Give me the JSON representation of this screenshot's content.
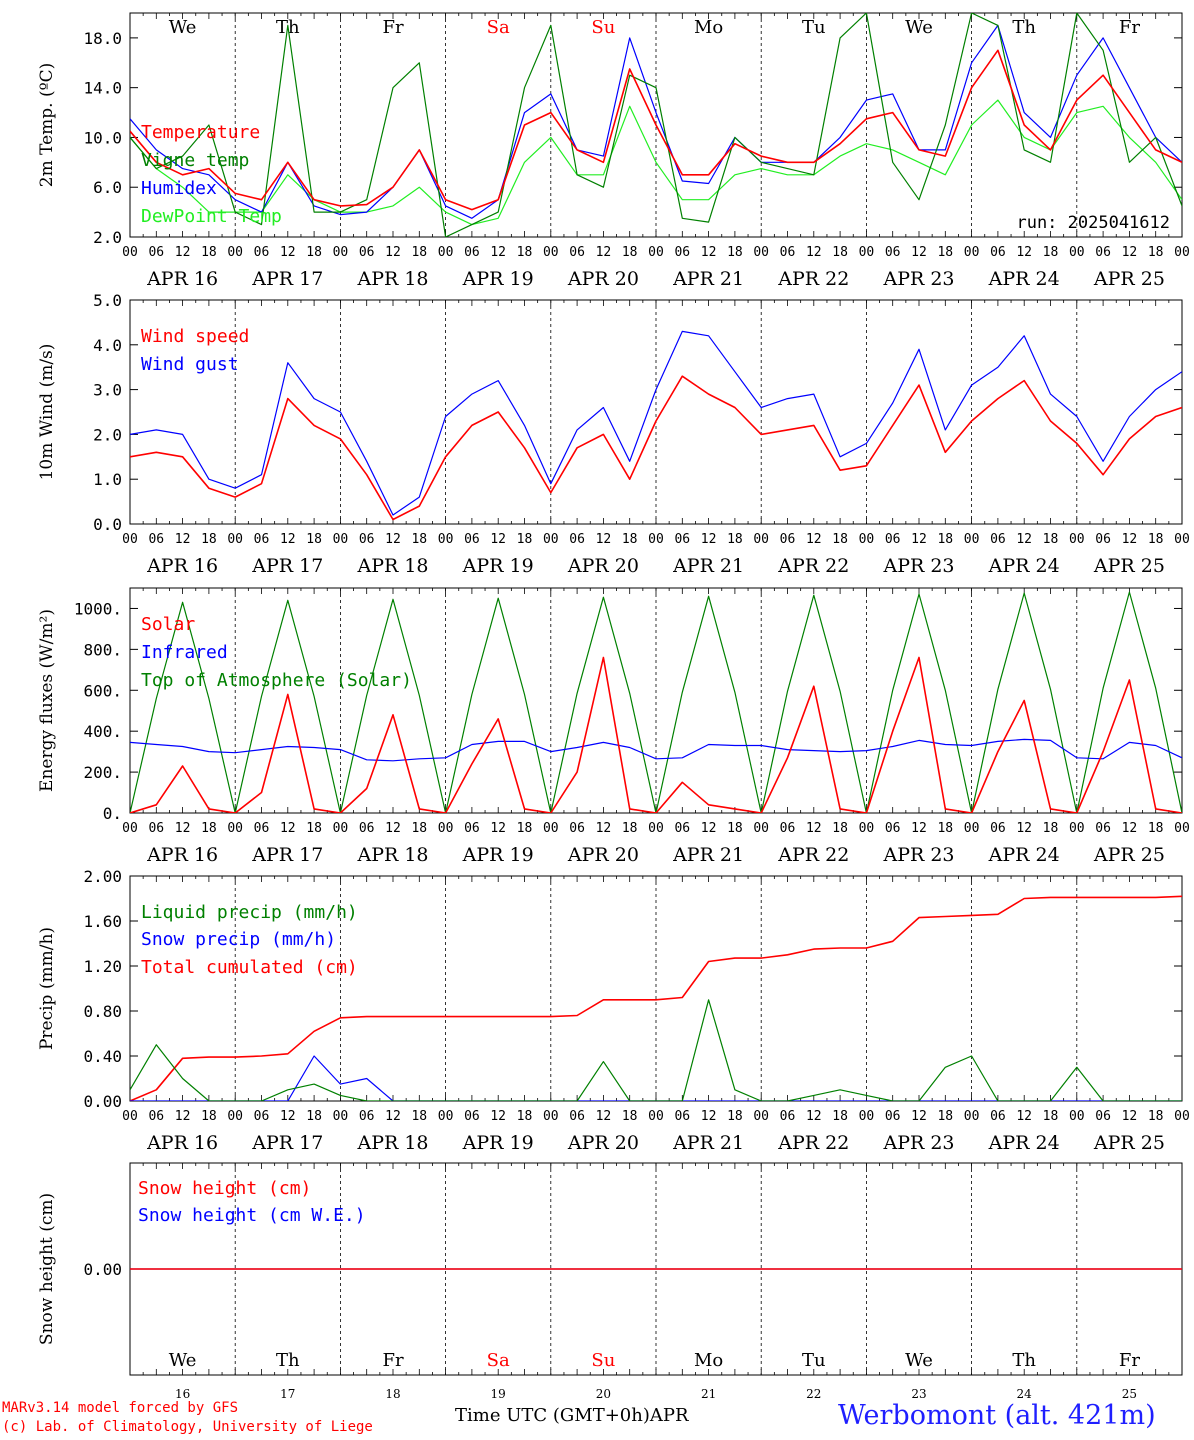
{
  "footer": {
    "model_line": "MARv3.14 model forced by GFS",
    "credit_line": "(c) Lab. of Climatology, University of Liege",
    "xlabel": "Time UTC (GMT+0h)",
    "month": "APR",
    "station": "Werbomont (alt. 421m)"
  },
  "colors": {
    "red": "#ff0000",
    "green": "#008000",
    "blue": "#0000ff",
    "lightgreen": "#22ee22",
    "station": "#1f1fff",
    "credit": "#ff0000"
  },
  "days": {
    "labels": [
      "APR 16",
      "APR 17",
      "APR 18",
      "APR 19",
      "APR 20",
      "APR 21",
      "APR 22",
      "APR 23",
      "APR 24",
      "APR 25"
    ],
    "weekdays": [
      "We",
      "Th",
      "Fr",
      "Sa",
      "Su",
      "Mo",
      "Tu",
      "We",
      "Th",
      "Fr"
    ],
    "weekday_colors": [
      "black",
      "black",
      "black",
      "red",
      "red",
      "black",
      "black",
      "black",
      "black",
      "black"
    ],
    "numbers": [
      "16",
      "17",
      "18",
      "19",
      "20",
      "21",
      "22",
      "23",
      "24",
      "25"
    ],
    "hour_ticks": [
      "00",
      "06",
      "12",
      "18"
    ],
    "final_tick": "00"
  },
  "chart_data": [
    {
      "id": "temp",
      "type": "line",
      "ylabel": "2m Temp. (ºC)",
      "ylim": [
        2,
        20
      ],
      "yticks": [
        2,
        6,
        10,
        14,
        18
      ],
      "ytick_labels": [
        "2.0",
        "6.0",
        "10.0",
        "14.0",
        "18.0"
      ],
      "run_label": "run: 2025041612",
      "x_hours": [
        0,
        6,
        12,
        18,
        24,
        30,
        36,
        42,
        48,
        54,
        60,
        66,
        72,
        78,
        84,
        90,
        96,
        102,
        108,
        114,
        120,
        126,
        132,
        138,
        144,
        150,
        156,
        162,
        168,
        174,
        180,
        186,
        192,
        198,
        204,
        210,
        216,
        222,
        228,
        234,
        240
      ],
      "series": [
        {
          "name": "Temperature",
          "color": "red",
          "values": [
            10.5,
            8,
            7,
            7.5,
            5.5,
            5,
            8,
            5,
            4.5,
            4.6,
            6,
            9,
            5,
            4.2,
            5,
            11,
            12,
            9,
            8,
            15.5,
            11,
            7,
            7,
            9.5,
            8.5,
            8,
            8,
            9.5,
            11.5,
            12,
            9,
            8.5,
            14,
            17,
            11,
            9,
            13,
            15,
            12,
            9,
            8
          ]
        },
        {
          "name": "Vigne temp",
          "color": "green",
          "values": [
            10,
            7.5,
            8.5,
            11,
            4,
            3,
            19,
            4,
            4,
            5,
            14,
            16,
            2,
            3,
            4,
            14,
            19,
            7,
            6,
            15,
            14,
            3.5,
            3.2,
            10,
            8,
            7.5,
            7,
            18,
            20,
            8,
            5,
            11,
            20,
            19,
            9,
            8,
            20,
            17,
            8,
            10,
            4.5
          ]
        },
        {
          "name": "Humidex",
          "color": "blue",
          "values": [
            11.5,
            9,
            7.5,
            7,
            5,
            4,
            8,
            4.5,
            3.8,
            4,
            6,
            9,
            4.5,
            3.5,
            5,
            12,
            13.5,
            9,
            8.5,
            18,
            12,
            6.5,
            6.3,
            10,
            8,
            8,
            8,
            10,
            13,
            13.5,
            9,
            9,
            16,
            19,
            12,
            10,
            15,
            18,
            14,
            10,
            8
          ]
        },
        {
          "name": "DewPoint Temp",
          "color": "lightgreen",
          "values": [
            10,
            7.5,
            6,
            4,
            4,
            4,
            7,
            5,
            4,
            4,
            4.5,
            6,
            4,
            3,
            3.5,
            8,
            10,
            7,
            7,
            12.5,
            8,
            5,
            5,
            7,
            7.5,
            7,
            7,
            8.5,
            9.5,
            9,
            8,
            7,
            11,
            13,
            10,
            9,
            12,
            12.5,
            10,
            8,
            5
          ]
        }
      ]
    },
    {
      "id": "wind",
      "type": "line",
      "ylabel": "10m Wind (m/s)",
      "ylim": [
        0,
        5
      ],
      "yticks": [
        0,
        1,
        2,
        3,
        4,
        5
      ],
      "ytick_labels": [
        "0.0",
        "1.0",
        "2.0",
        "3.0",
        "4.0",
        "5.0"
      ],
      "x_hours": [
        0,
        6,
        12,
        18,
        24,
        30,
        36,
        42,
        48,
        54,
        60,
        66,
        72,
        78,
        84,
        90,
        96,
        102,
        108,
        114,
        120,
        126,
        132,
        138,
        144,
        150,
        156,
        162,
        168,
        174,
        180,
        186,
        192,
        198,
        204,
        210,
        216,
        222,
        228,
        234,
        240
      ],
      "series": [
        {
          "name": "Wind speed",
          "color": "red",
          "values": [
            1.5,
            1.6,
            1.5,
            0.8,
            0.6,
            0.9,
            2.8,
            2.2,
            1.9,
            1.1,
            0.1,
            0.4,
            1.5,
            2.2,
            2.5,
            1.7,
            0.7,
            1.7,
            2.0,
            1.0,
            2.3,
            3.3,
            2.9,
            2.6,
            2.0,
            2.1,
            2.2,
            1.2,
            1.3,
            2.2,
            3.1,
            1.6,
            2.3,
            2.8,
            3.2,
            2.3,
            1.8,
            1.1,
            1.9,
            2.4,
            2.6
          ]
        },
        {
          "name": "Wind gust",
          "color": "blue",
          "values": [
            2.0,
            2.1,
            2.0,
            1.0,
            0.8,
            1.1,
            3.6,
            2.8,
            2.5,
            1.4,
            0.2,
            0.6,
            2.4,
            2.9,
            3.2,
            2.2,
            0.9,
            2.1,
            2.6,
            1.4,
            3.0,
            4.3,
            4.2,
            3.4,
            2.6,
            2.8,
            2.9,
            1.5,
            1.8,
            2.7,
            3.9,
            2.1,
            3.1,
            3.5,
            4.2,
            2.9,
            2.4,
            1.4,
            2.4,
            3.0,
            3.4
          ]
        }
      ]
    },
    {
      "id": "energy",
      "type": "line",
      "ylabel": "Energy fluxes (W/m²)",
      "ylim": [
        0,
        1100
      ],
      "yticks": [
        0,
        200,
        400,
        600,
        800,
        1000
      ],
      "ytick_labels": [
        "0.",
        "200.",
        "400.",
        "600.",
        "800.",
        "1000."
      ],
      "x_hours": [
        0,
        6,
        12,
        18,
        24,
        30,
        36,
        42,
        48,
        54,
        60,
        66,
        72,
        78,
        84,
        90,
        96,
        102,
        108,
        114,
        120,
        126,
        132,
        138,
        144,
        150,
        156,
        162,
        168,
        174,
        180,
        186,
        192,
        198,
        204,
        210,
        216,
        222,
        228,
        234,
        240
      ],
      "series": [
        {
          "name": "Solar",
          "color": "red",
          "values": [
            0,
            40,
            230,
            20,
            0,
            100,
            580,
            20,
            0,
            120,
            480,
            20,
            0,
            240,
            460,
            20,
            0,
            200,
            760,
            20,
            0,
            150,
            40,
            20,
            0,
            270,
            620,
            20,
            0,
            400,
            760,
            20,
            0,
            300,
            550,
            20,
            0,
            300,
            650,
            20,
            0
          ]
        },
        {
          "name": "Infrared",
          "color": "blue",
          "values": [
            345,
            335,
            325,
            300,
            295,
            310,
            325,
            320,
            310,
            260,
            255,
            265,
            270,
            335,
            350,
            350,
            300,
            320,
            345,
            320,
            265,
            270,
            335,
            330,
            330,
            310,
            305,
            300,
            305,
            325,
            355,
            335,
            330,
            350,
            360,
            355,
            270,
            265,
            345,
            330,
            270
          ]
        },
        {
          "name": "Top of Atmosphere (Solar)",
          "color": "green",
          "values": [
            0,
            560,
            1030,
            560,
            0,
            570,
            1040,
            570,
            0,
            575,
            1045,
            575,
            0,
            580,
            1050,
            580,
            0,
            585,
            1055,
            585,
            0,
            590,
            1060,
            590,
            0,
            595,
            1065,
            595,
            0,
            600,
            1070,
            600,
            0,
            605,
            1075,
            605,
            0,
            610,
            1080,
            610,
            0
          ]
        }
      ]
    },
    {
      "id": "precip",
      "type": "line",
      "ylabel": "Precip (mm/h)",
      "ylim": [
        0,
        2
      ],
      "yticks": [
        0,
        0.4,
        0.8,
        1.2,
        1.6,
        2.0
      ],
      "ytick_labels": [
        "0.00",
        "0.40",
        "0.80",
        "1.20",
        "1.60",
        "2.00"
      ],
      "x_hours": [
        0,
        6,
        12,
        18,
        24,
        30,
        36,
        42,
        48,
        54,
        60,
        66,
        72,
        78,
        84,
        90,
        96,
        102,
        108,
        114,
        120,
        126,
        132,
        138,
        144,
        150,
        156,
        162,
        168,
        174,
        180,
        186,
        192,
        198,
        204,
        210,
        216,
        222,
        228,
        234,
        240
      ],
      "series": [
        {
          "name": "Liquid precip (mm/h)",
          "color": "green",
          "values": [
            0.1,
            0.5,
            0.2,
            0,
            0,
            0,
            0.1,
            0.15,
            0.05,
            0,
            0,
            0,
            0,
            0,
            0,
            0,
            0,
            0,
            0.35,
            0,
            0,
            0,
            0.9,
            0.1,
            0,
            0,
            0.05,
            0.1,
            0.05,
            0,
            0,
            0.3,
            0.4,
            0,
            0,
            0,
            0.3,
            0,
            0,
            0,
            0
          ]
        },
        {
          "name": "Snow precip (mm/h)",
          "color": "blue",
          "values": [
            0,
            0,
            0,
            0,
            0,
            0,
            0,
            0.4,
            0.15,
            0.2,
            0,
            0,
            0,
            0,
            0,
            0,
            0,
            0,
            0,
            0,
            0,
            0,
            0,
            0,
            0,
            0,
            0,
            0,
            0,
            0,
            0,
            0,
            0,
            0,
            0,
            0,
            0,
            0,
            0,
            0,
            0
          ]
        },
        {
          "name": "Total cumulated (cm)",
          "color": "red",
          "values": [
            0,
            0.1,
            0.38,
            0.39,
            0.39,
            0.4,
            0.42,
            0.62,
            0.74,
            0.75,
            0.75,
            0.75,
            0.75,
            0.75,
            0.75,
            0.75,
            0.75,
            0.76,
            0.9,
            0.9,
            0.9,
            0.92,
            1.24,
            1.27,
            1.27,
            1.3,
            1.35,
            1.36,
            1.36,
            1.42,
            1.63,
            1.64,
            1.65,
            1.66,
            1.8,
            1.81,
            1.81,
            1.81,
            1.81,
            1.81,
            1.82
          ]
        }
      ]
    },
    {
      "id": "snow",
      "type": "line",
      "ylabel": "Snow height (cm)",
      "ylim": [
        -1,
        1
      ],
      "yticks": [
        0
      ],
      "ytick_labels": [
        "0.00"
      ],
      "x_hours": [
        0,
        240
      ],
      "series": [
        {
          "name": "Snow height (cm)",
          "color": "red",
          "values": [
            0,
            0
          ]
        },
        {
          "name": "Snow height (cm W.E.)",
          "color": "blue",
          "values": [
            0,
            0
          ]
        }
      ]
    }
  ]
}
